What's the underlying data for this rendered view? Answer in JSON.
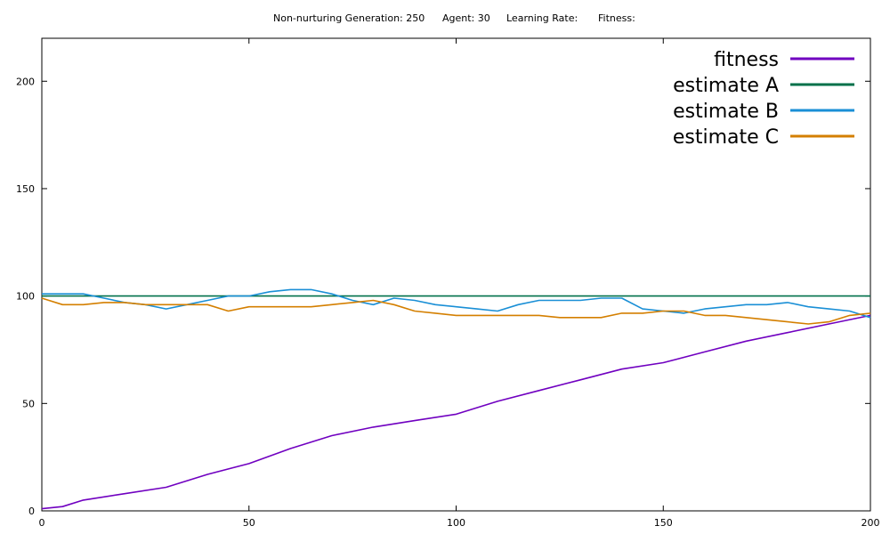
{
  "header": {
    "generation": "Non-nurturing Generation: 250",
    "agent": "Agent: 30",
    "learning_rate": "Learning Rate:",
    "fitness": "Fitness:"
  },
  "chart_data": {
    "type": "line",
    "title": "",
    "xlabel": "",
    "ylabel": "",
    "xlim": [
      0,
      200
    ],
    "ylim": [
      0,
      220
    ],
    "x_ticks": [
      "0",
      "50",
      "100",
      "150",
      "200"
    ],
    "y_ticks": [
      "0",
      "50",
      "100",
      "150",
      "200"
    ],
    "legend_position": "top-right",
    "series": [
      {
        "name": "fitness",
        "color": "#7000c0",
        "x": [
          0,
          5,
          10,
          20,
          30,
          40,
          50,
          60,
          70,
          80,
          90,
          100,
          110,
          120,
          130,
          140,
          150,
          160,
          170,
          180,
          190,
          200
        ],
        "y": [
          1,
          2,
          5,
          8,
          11,
          17,
          22,
          29,
          35,
          39,
          42,
          45,
          51,
          56,
          61,
          66,
          69,
          74,
          79,
          83,
          87,
          91
        ]
      },
      {
        "name": "estimate A",
        "color": "#00704a",
        "x": [
          0,
          200
        ],
        "y": [
          100,
          100
        ]
      },
      {
        "name": "estimate B",
        "color": "#1a8fd6",
        "x": [
          0,
          5,
          10,
          15,
          20,
          25,
          30,
          35,
          40,
          45,
          50,
          55,
          60,
          65,
          70,
          75,
          80,
          85,
          90,
          95,
          100,
          105,
          110,
          115,
          120,
          125,
          130,
          135,
          140,
          145,
          150,
          155,
          160,
          165,
          170,
          175,
          180,
          185,
          190,
          195,
          200
        ],
        "y": [
          101,
          101,
          101,
          99,
          97,
          96,
          94,
          96,
          98,
          100,
          100,
          102,
          103,
          103,
          101,
          98,
          96,
          99,
          98,
          96,
          95,
          94,
          93,
          96,
          98,
          98,
          98,
          99,
          99,
          94,
          93,
          92,
          94,
          95,
          96,
          96,
          97,
          95,
          94,
          93,
          90
        ]
      },
      {
        "name": "estimate C",
        "color": "#d47f00",
        "x": [
          0,
          5,
          10,
          15,
          20,
          25,
          30,
          35,
          40,
          45,
          50,
          55,
          60,
          65,
          70,
          75,
          80,
          85,
          90,
          95,
          100,
          105,
          110,
          115,
          120,
          125,
          130,
          135,
          140,
          145,
          150,
          155,
          160,
          165,
          170,
          175,
          180,
          185,
          190,
          195,
          200
        ],
        "y": [
          99,
          96,
          96,
          97,
          97,
          96,
          96,
          96,
          96,
          93,
          95,
          95,
          95,
          95,
          96,
          97,
          98,
          96,
          93,
          92,
          91,
          91,
          91,
          91,
          91,
          90,
          90,
          90,
          92,
          92,
          93,
          93,
          91,
          91,
          90,
          89,
          88,
          87,
          88,
          91,
          92
        ]
      }
    ]
  }
}
